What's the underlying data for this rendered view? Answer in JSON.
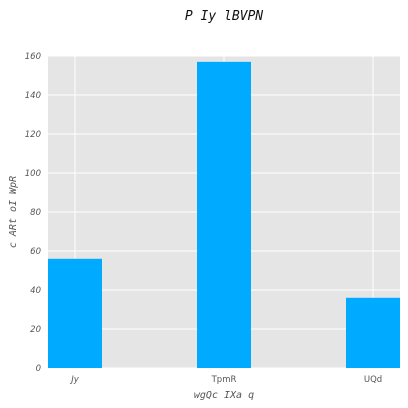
{
  "chart_data": {
    "type": "bar",
    "title": "P Iy lBVPN",
    "xlabel": "wgQc IXa q",
    "ylabel": "c ARt oI WpR",
    "categories": [
      "Jy",
      "TpmR",
      "UQd"
    ],
    "values": [
      56,
      157,
      36
    ],
    "ylim": [
      0,
      160
    ],
    "yticks": [
      0,
      20,
      40,
      60,
      80,
      100,
      120,
      140,
      160
    ],
    "grid": true,
    "legend": "none",
    "colors": {
      "bar": "#00aaff",
      "plot_background": "#e5e5e5",
      "grid": "#ffffff"
    }
  }
}
